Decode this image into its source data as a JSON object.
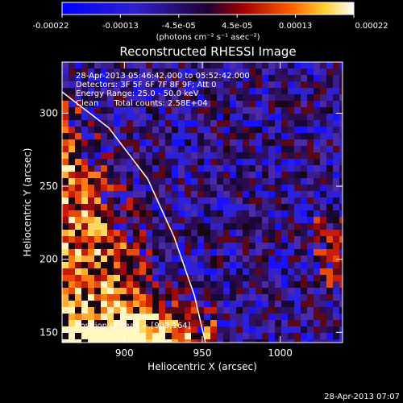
{
  "chart_data": {
    "type": "heatmap",
    "title": "Reconstructed RHESSI Image",
    "xlabel": "Heliocentric X (arcsec)",
    "ylabel": "Heliocentric Y (arcsec)",
    "xlim": [
      860,
      1040
    ],
    "ylim": [
      143,
      335
    ],
    "x_ticks": [
      900,
      950,
      1000
    ],
    "y_ticks": [
      150,
      200,
      250,
      300
    ],
    "colorbar": {
      "unit_label": "(photons cm⁻² s⁻¹ asec⁻²)",
      "range": [
        -0.00022,
        0.00022
      ],
      "tick_labels": [
        "-0.00022",
        "-0.00013",
        "-4.5e-05",
        "4.5e-05",
        "0.00013",
        "0.00022"
      ]
    },
    "info_lines": [
      "28-Apr-2013 05:46:42.000 to 05:52:42.000",
      "Detectors: 3F 5F 6F 7F 8F 9F; Att 0",
      "Energy Range: 25.0 - 50.0 keV",
      "Clean      Total counts: 2.58E+04"
    ],
    "peak_label": "Position of Peak = [903,164]",
    "timestamp": "28-Apr-2013 07:07",
    "limb": [
      [
        835,
        335
      ],
      [
        890,
        290
      ],
      [
        915,
        255
      ],
      [
        932,
        215
      ],
      [
        945,
        175
      ],
      [
        952,
        143
      ]
    ],
    "grid": false,
    "legend": "none"
  }
}
